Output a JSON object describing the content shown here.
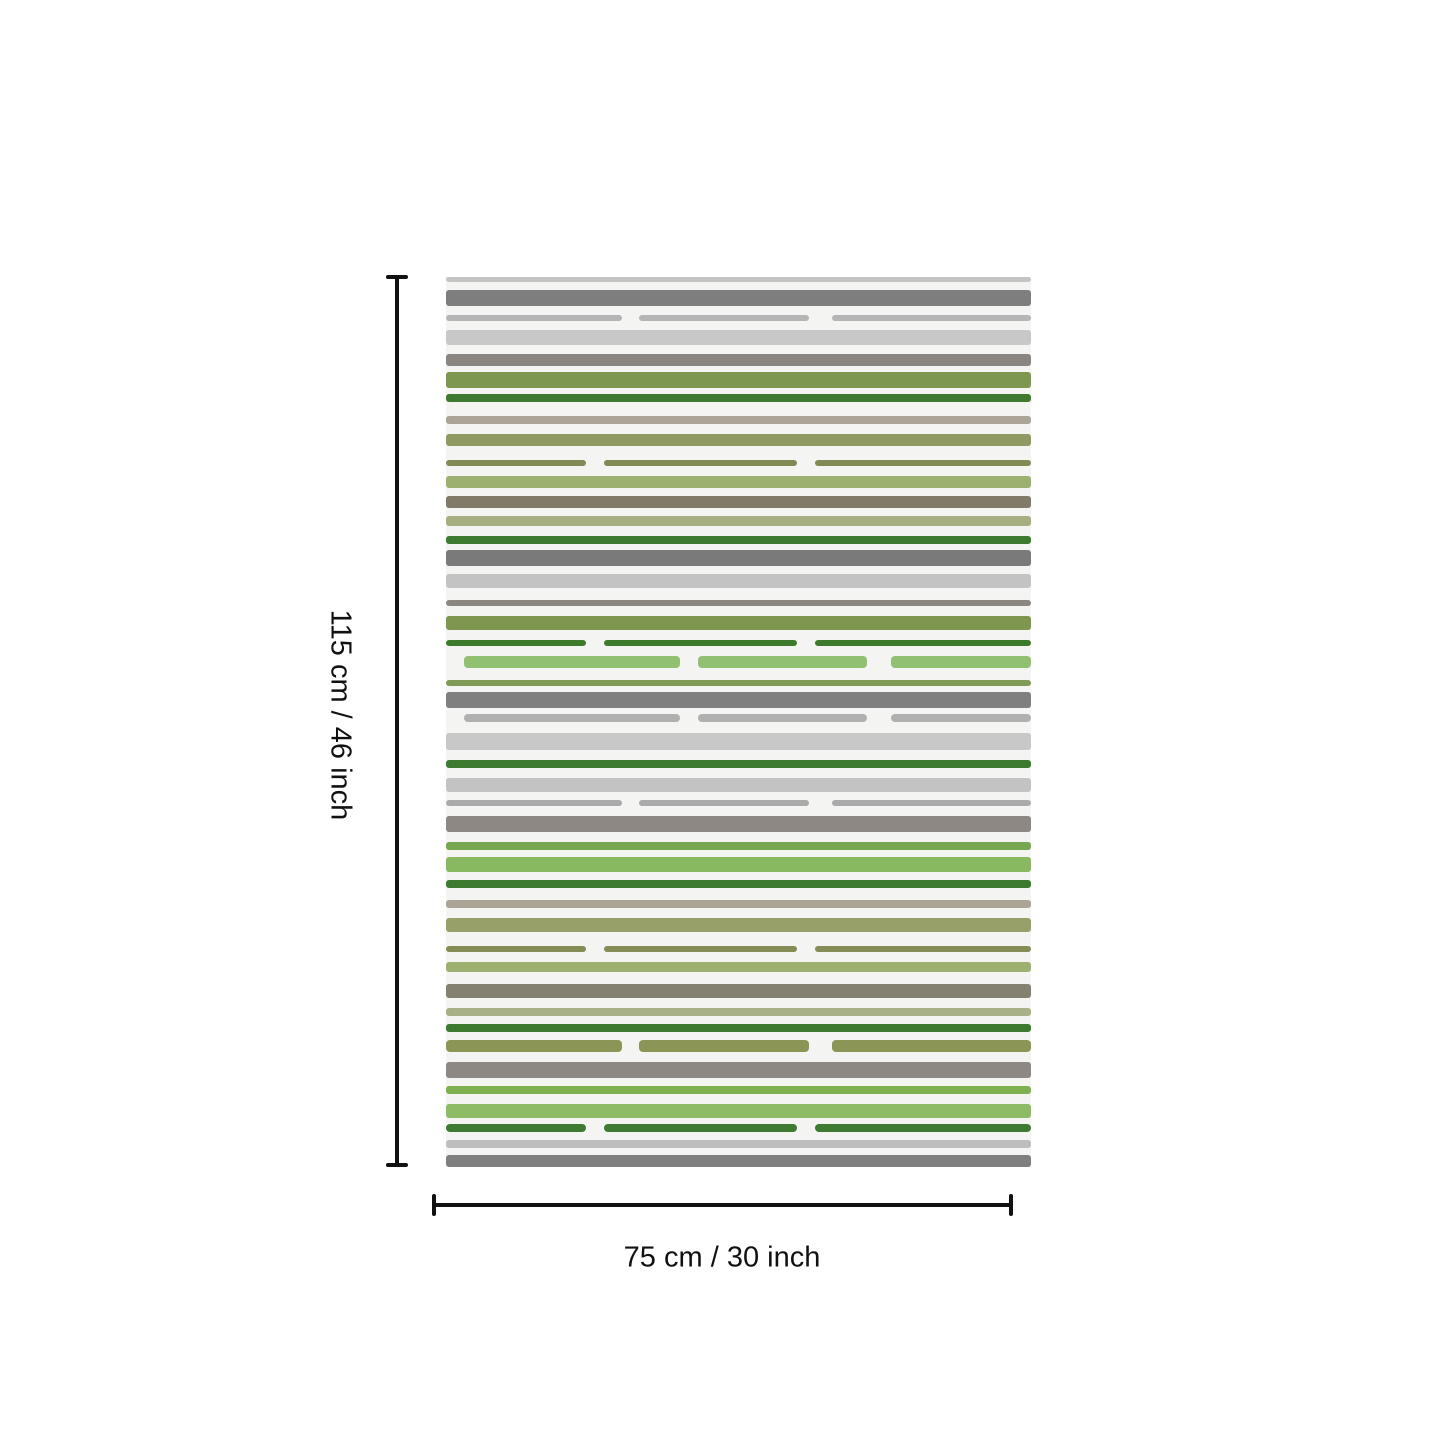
{
  "product": {
    "height_label": "115 cm / 46 inch",
    "width_label": "75 cm / 30 inch"
  },
  "rug": {
    "background_color": "#f4f4f2",
    "stripe_colors": [
      "#c4c4c4",
      "#7e7e7e",
      "#b5b5b5",
      "#c8c8c8",
      "#8a8580",
      "#7d9650",
      "#3f7a30",
      "#aaa596",
      "#8f9a62",
      "#7f8a55",
      "#9cb070",
      "#7f7b68",
      "#a5af80",
      "#3e7a2f",
      "#7a7a7a",
      "#c3c3c3",
      "#8c8680",
      "#7f9650",
      "#3d7a2c",
      "#90c070",
      "#7f9a55",
      "#7f7f7f",
      "#b0b0b0",
      "#c8c8c8",
      "#3e7a2f",
      "#c3c3c3",
      "#aaaaaa",
      "#8d8883",
      "#77a850",
      "#88b860",
      "#3e7a2f",
      "#a9a496",
      "#97a068",
      "#858c55",
      "#9cb070",
      "#858170",
      "#a8b088",
      "#3e7a2f",
      "#8b9556",
      "#8d8883",
      "#7fb050",
      "#8dbb66",
      "#3e7a2f",
      "#bdbdbd",
      "#7f7f7f"
    ]
  }
}
